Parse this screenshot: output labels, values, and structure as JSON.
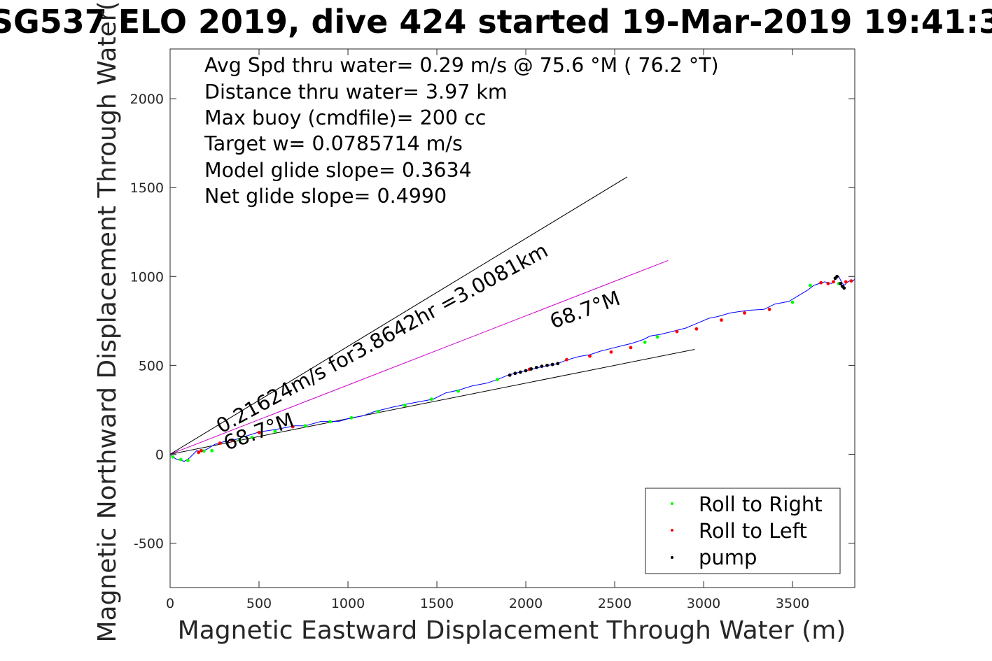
{
  "chart_data": {
    "type": "line",
    "title": "SG537 ELO 2019, dive 424 started 19-Mar-2019 19:41:3",
    "xlabel": "Magnetic Eastward Displacement Through Water (m)",
    "ylabel": "Magnetic Northward Displacement Through Water(",
    "xlim": [
      0,
      3850
    ],
    "ylim": [
      -750,
      2280
    ],
    "xticks": [
      0,
      500,
      1000,
      1500,
      2000,
      2500,
      3000,
      3500
    ],
    "yticks": [
      -500,
      0,
      500,
      1000,
      1500,
      2000
    ],
    "grid": false,
    "legend_position": "bottom-right",
    "info_lines": [
      "Avg Spd thru water=  0.29 m/s @  75.6 °M ( 76.2 °T)",
      "Distance thru water=  3.97 km",
      "Max buoy (cmdfile)= 200 cc",
      "Target w= 0.0785714 m/s",
      "Model glide slope= 0.3634",
      "Net glide slope= 0.4990"
    ],
    "annotations": [
      {
        "text": "0.21624m/s for3.8642hr =3.0081km",
        "x": 260,
        "y": 120
      },
      {
        "text": "68.7°M",
        "x": 300,
        "y": 20
      },
      {
        "text": "68.7°M",
        "x": 2150,
        "y": 700
      }
    ],
    "reference_lines": [
      {
        "name": "steep",
        "color": "#000000",
        "x": [
          0,
          2570
        ],
        "y": [
          0,
          1560
        ]
      },
      {
        "name": "heading",
        "color": "#cc00cc",
        "x": [
          0,
          2800
        ],
        "y": [
          0,
          1090
        ]
      },
      {
        "name": "shallow",
        "color": "#000000",
        "x": [
          0,
          2950
        ],
        "y": [
          0,
          590
        ]
      }
    ],
    "track": {
      "name": "track",
      "color": "#0000ff",
      "x": [
        0,
        30,
        80,
        110,
        130,
        150,
        180,
        210,
        250,
        300,
        360,
        420,
        500,
        600,
        700,
        760,
        850,
        950,
        1000,
        1080,
        1150,
        1250,
        1320,
        1400,
        1480,
        1550,
        1620,
        1700,
        1780,
        1840,
        1900,
        1960,
        2020,
        2080,
        2130,
        2180,
        2230,
        2300,
        2360,
        2420,
        2480,
        2540,
        2600,
        2660,
        2700,
        2760,
        2820,
        2900,
        2960,
        3030,
        3080,
        3150,
        3250,
        3340,
        3400,
        3480,
        3530,
        3580,
        3620,
        3650,
        3680,
        3700,
        3720,
        3740,
        3760,
        3775,
        3790,
        3805,
        3820,
        3835,
        3850
      ],
      "y": [
        0,
        -25,
        -40,
        -20,
        0,
        20,
        15,
        30,
        55,
        70,
        80,
        100,
        125,
        140,
        160,
        160,
        185,
        185,
        200,
        215,
        240,
        265,
        280,
        295,
        310,
        345,
        360,
        385,
        400,
        420,
        445,
        460,
        475,
        490,
        500,
        510,
        530,
        550,
        560,
        580,
        595,
        610,
        625,
        645,
        665,
        675,
        690,
        710,
        735,
        765,
        775,
        795,
        810,
        815,
        845,
        860,
        890,
        920,
        950,
        960,
        970,
        965,
        960,
        985,
        1000,
        970,
        950,
        965,
        975,
        970,
        985
      ]
    },
    "legend": [
      {
        "label": "Roll to Right",
        "color": "#00ff00"
      },
      {
        "label": "Roll to Left",
        "color": "#ff0000"
      },
      {
        "label": "pump",
        "color": "#000000"
      }
    ],
    "marker_series": [
      {
        "name": "Roll to Right",
        "color": "#00ff00",
        "x": [
          15,
          60,
          100,
          190,
          235,
          390,
          460,
          590,
          760,
          900,
          1020,
          1170,
          1320,
          1470,
          1620,
          1840,
          2670,
          2740,
          3500,
          3600,
          3760
        ],
        "y": [
          -15,
          -30,
          -35,
          18,
          20,
          80,
          95,
          128,
          160,
          183,
          205,
          240,
          275,
          310,
          355,
          420,
          630,
          660,
          855,
          950,
          960
        ]
      },
      {
        "name": "Roll to Left",
        "color": "#ff0000",
        "x": [
          160,
          175,
          280,
          350,
          500,
          690,
          2020,
          2230,
          2360,
          2480,
          2590,
          2850,
          2960,
          3100,
          3230,
          3370,
          3660,
          3700,
          3730,
          3800,
          3830
        ],
        "y": [
          10,
          20,
          62,
          78,
          122,
          155,
          478,
          532,
          552,
          575,
          600,
          690,
          705,
          755,
          795,
          815,
          965,
          960,
          970,
          970,
          975
        ]
      },
      {
        "name": "pump",
        "color": "#000000",
        "x": [
          1910,
          1940,
          1970,
          2000,
          2030,
          2060,
          2090,
          2120,
          2150,
          2180,
          3740,
          3750,
          3770,
          3780,
          3790
        ],
        "y": [
          445,
          455,
          462,
          470,
          480,
          488,
          495,
          500,
          505,
          510,
          990,
          1000,
          960,
          945,
          935
        ]
      }
    ]
  }
}
